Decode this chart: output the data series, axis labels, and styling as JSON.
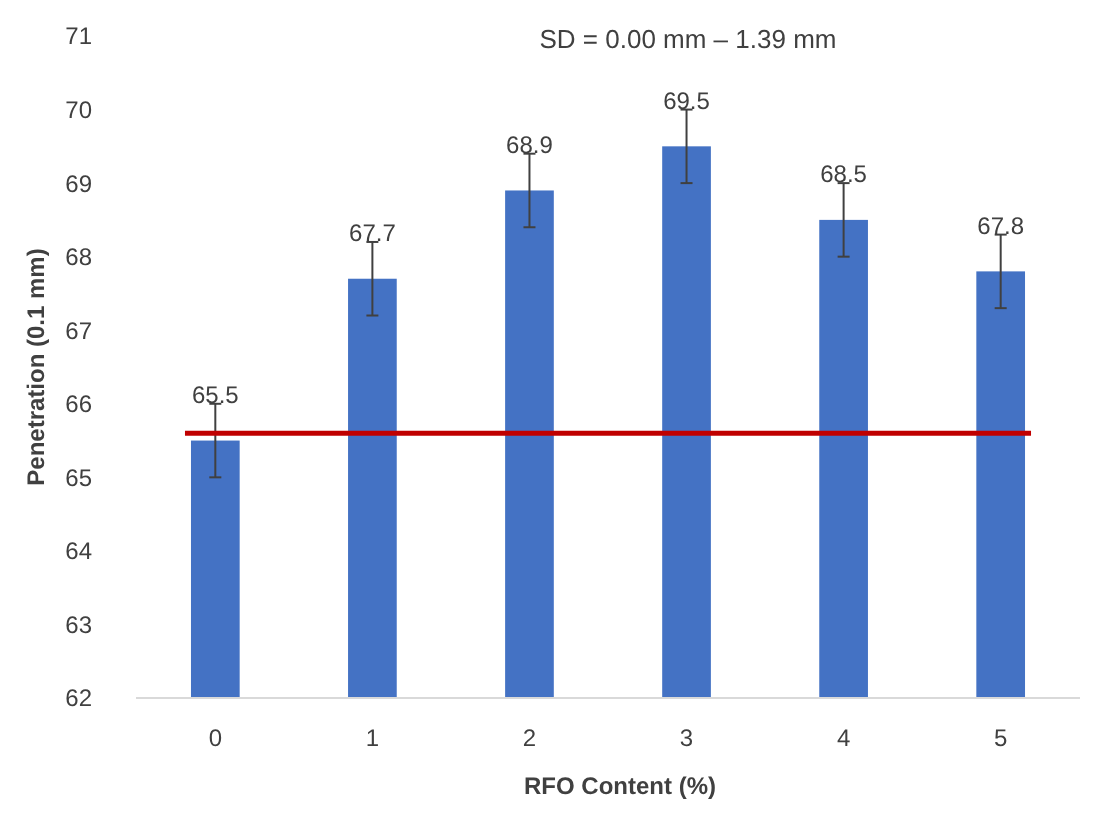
{
  "chart_data": {
    "type": "bar",
    "title": "SD = 0.00 mm – 1.39 mm",
    "xlabel": "RFO Content (%)",
    "ylabel": "Penetration (0.1 mm)",
    "categories": [
      "0",
      "1",
      "2",
      "3",
      "4",
      "5"
    ],
    "values": [
      65.5,
      67.7,
      68.9,
      69.5,
      68.5,
      67.8
    ],
    "errors": [
      0.5,
      0.5,
      0.5,
      0.5,
      0.5,
      0.5
    ],
    "color": "#4472c4",
    "data_labels": true,
    "ylim": [
      62,
      71
    ],
    "yticks": [
      62,
      63,
      64,
      65,
      66,
      67,
      68,
      69,
      70,
      71
    ],
    "ref_lines": [
      {
        "axis": "y",
        "value": 65.6,
        "color": "#c00000"
      }
    ],
    "grid": false
  }
}
